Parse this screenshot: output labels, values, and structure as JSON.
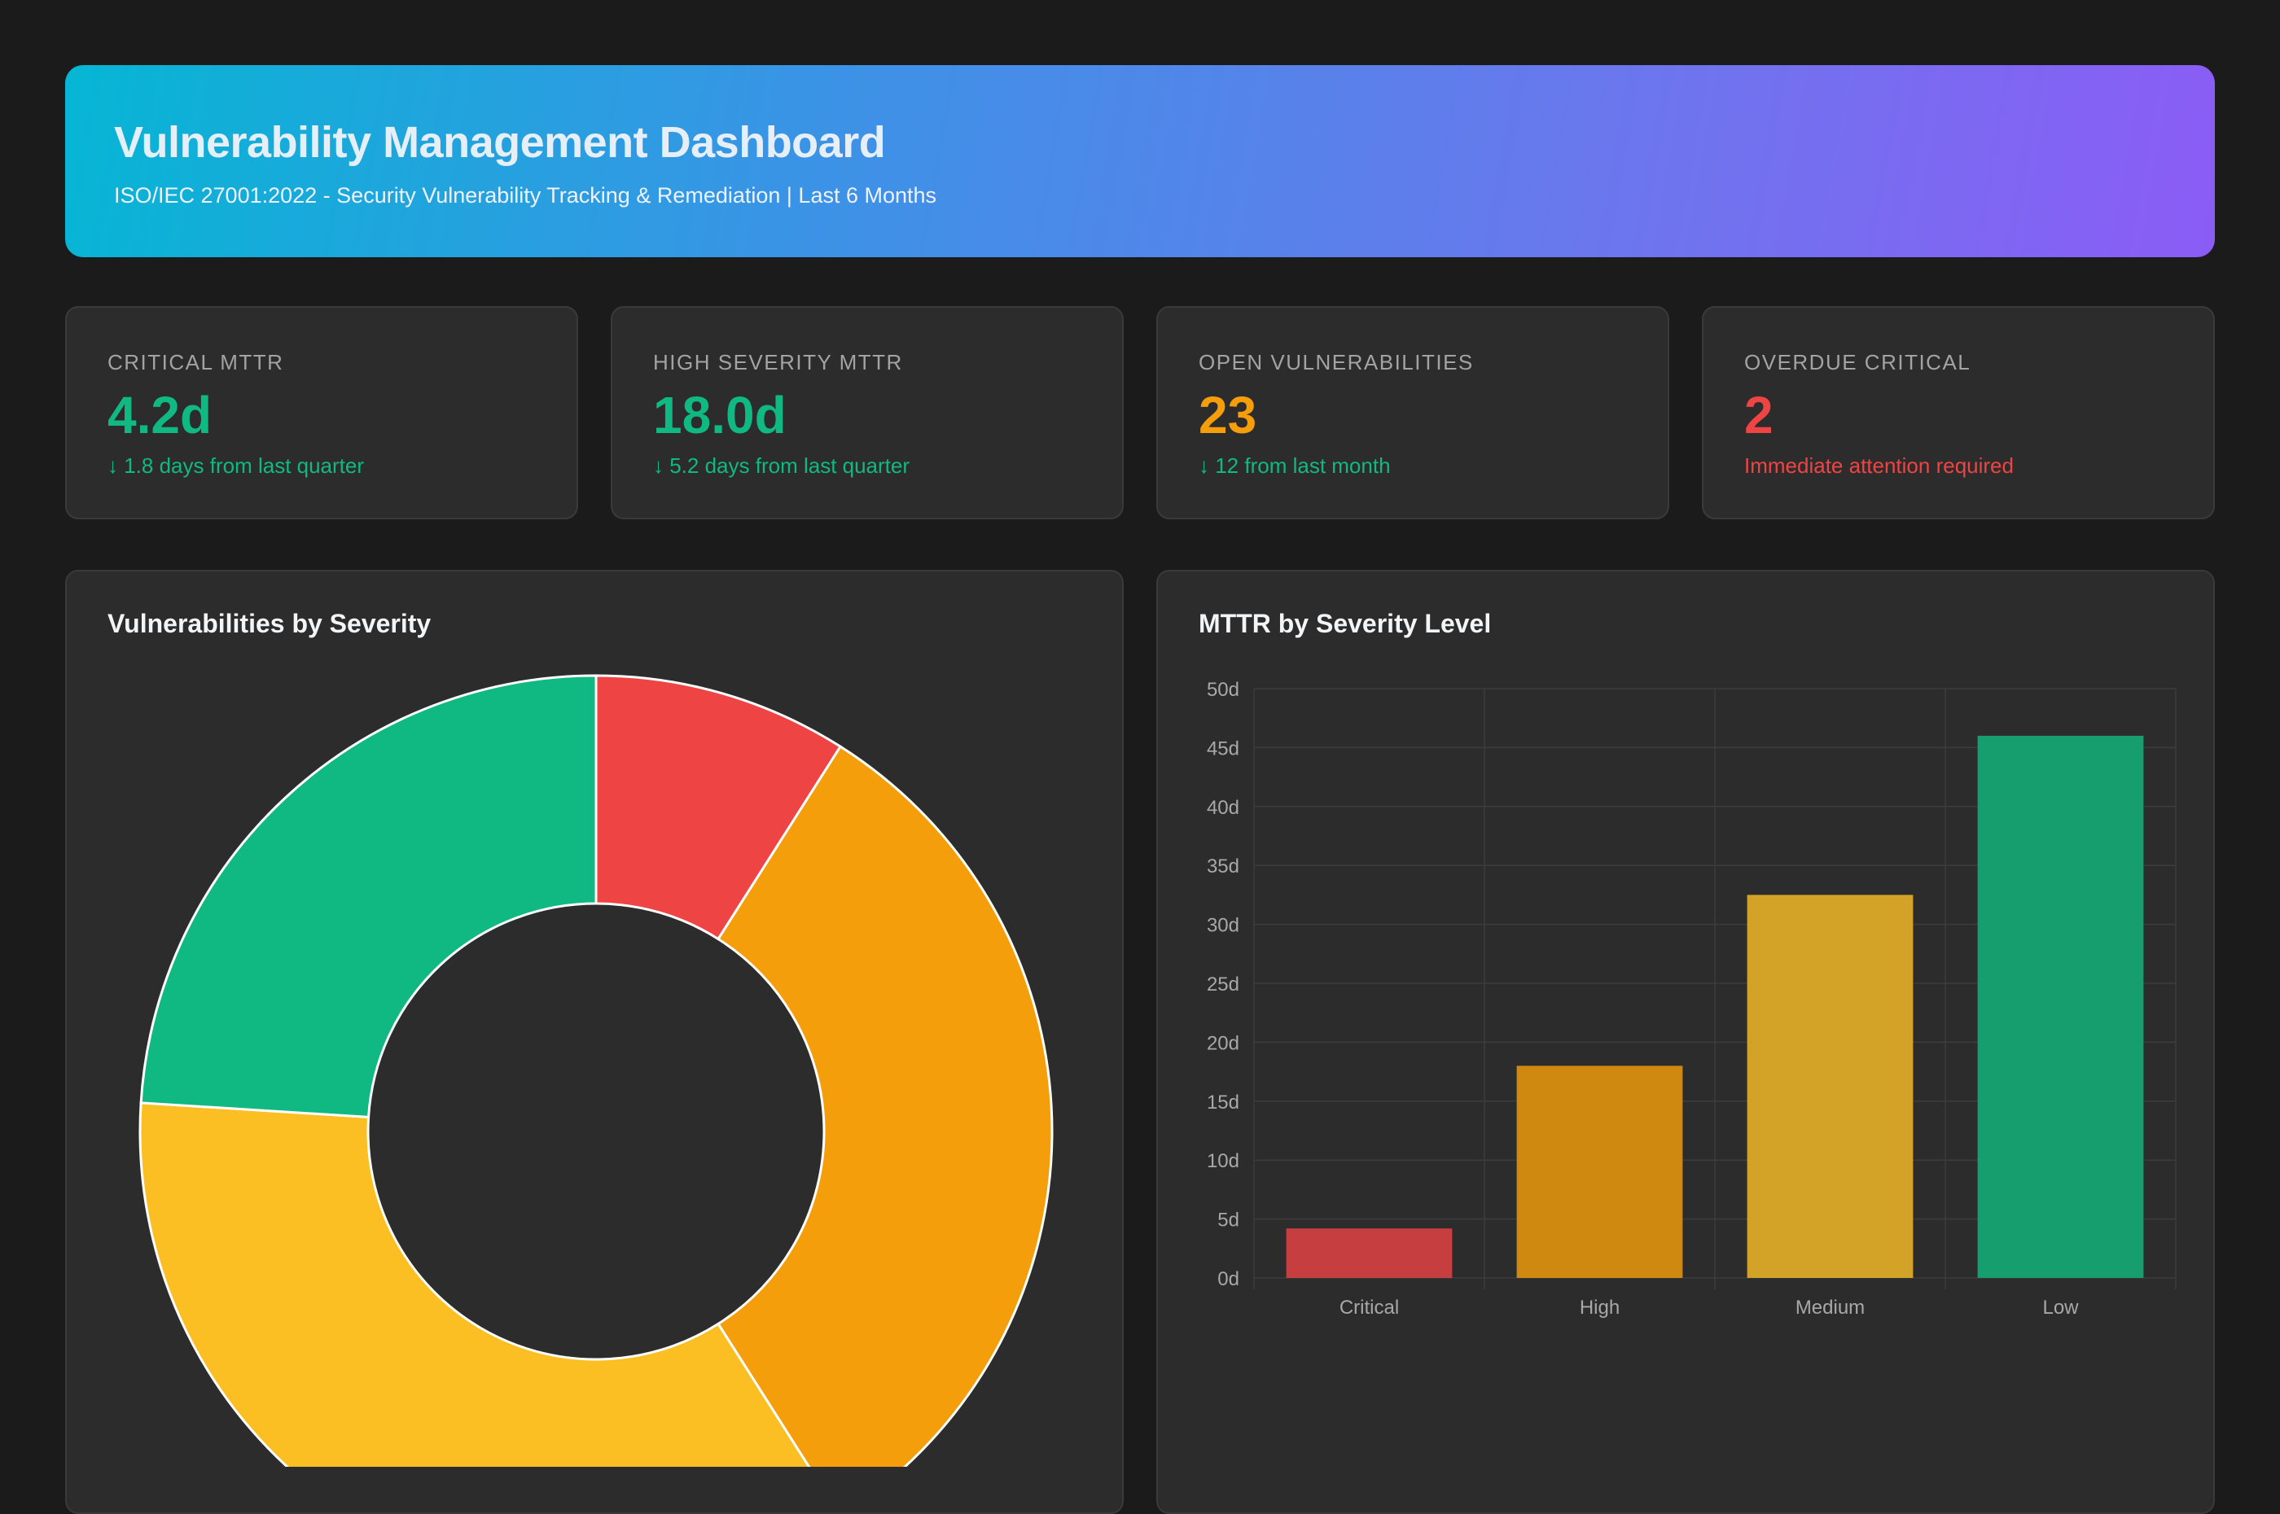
{
  "header": {
    "title": "Vulnerability Management Dashboard",
    "subtitle": "ISO/IEC 27001:2022 - Security Vulnerability Tracking & Remediation | Last 6 Months"
  },
  "kpis": [
    {
      "label": "CRITICAL MTTR",
      "value": "4.2d",
      "sub": "↓ 1.8 days from last quarter",
      "value_color": "#10b981",
      "sub_color": "#10b981"
    },
    {
      "label": "HIGH SEVERITY MTTR",
      "value": "18.0d",
      "sub": "↓ 5.2 days from last quarter",
      "value_color": "#10b981",
      "sub_color": "#10b981"
    },
    {
      "label": "OPEN VULNERABILITIES",
      "value": "23",
      "sub": "↓ 12 from last month",
      "value_color": "#f59e0b",
      "sub_color": "#10b981"
    },
    {
      "label": "OVERDUE CRITICAL",
      "value": "2",
      "sub": "Immediate attention required",
      "value_color": "#ef4444",
      "sub_color": "#ef4444"
    }
  ],
  "chart_data": [
    {
      "type": "pie",
      "title": "Vulnerabilities by Severity",
      "donut": true,
      "slices": [
        {
          "value": 9,
          "color": "#ef4444"
        },
        {
          "value": 32,
          "color": "#f59e0b"
        },
        {
          "value": 35,
          "color": "#fbbf24"
        },
        {
          "value": 24,
          "color": "#10b981"
        }
      ]
    },
    {
      "type": "bar",
      "title": "MTTR by Severity Level",
      "categories": [
        "Critical",
        "High",
        "Medium",
        "Low"
      ],
      "values": [
        4.2,
        18.0,
        32.5,
        46.0
      ],
      "colors": [
        "#c73e40",
        "#cf8810",
        "#d2a326",
        "#169e6e"
      ],
      "ylim": [
        0,
        50
      ],
      "yticks": [
        "0d",
        "5d",
        "10d",
        "15d",
        "20d",
        "25d",
        "30d",
        "35d",
        "40d",
        "45d",
        "50d"
      ],
      "grid": true
    }
  ]
}
